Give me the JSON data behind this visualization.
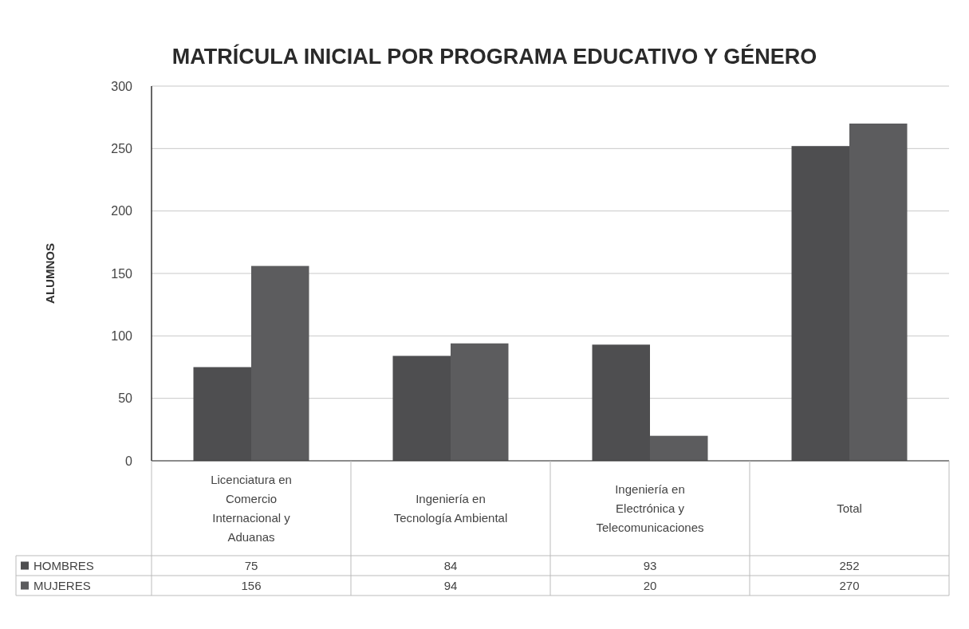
{
  "chart_data": {
    "type": "bar",
    "title": "MATRÍCULA INICIAL POR PROGRAMA EDUCATIVO Y GÉNERO",
    "ylabel": "ALUMNOS",
    "categories": [
      "Licenciatura en Comercio Internacional y Aduanas",
      "Ingeniería en Tecnología Ambiental",
      "Ingeniería en Electrónica y Telecomunicaciones",
      "Total"
    ],
    "series": [
      {
        "name": "HOMBRES",
        "color": "#4e4e50",
        "values": [
          75,
          84,
          93,
          252
        ]
      },
      {
        "name": "MUJERES",
        "color": "#5c5c5e",
        "values": [
          156,
          94,
          20,
          270
        ]
      }
    ],
    "ylim": [
      0,
      300
    ],
    "yticks": [
      0,
      50,
      100,
      150,
      200,
      250,
      300
    ],
    "grid": "y",
    "legend": "bottom",
    "data_labels": true
  }
}
